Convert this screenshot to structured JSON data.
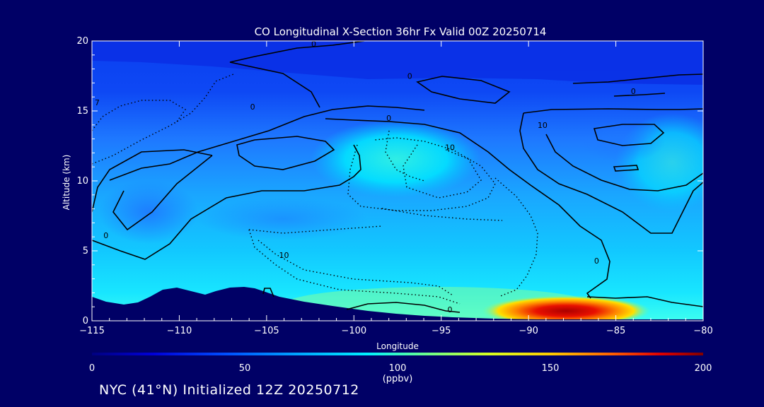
{
  "chart_data": {
    "type": "heatmap",
    "title": "CO Longitudinal X-Section 36hr  Fx Valid 00Z 20250714",
    "xlabel": "Longitude",
    "ylabel": "Altitude (km)",
    "xlim": [
      -115,
      -80
    ],
    "ylim": [
      0,
      20
    ],
    "xticks": [
      -115,
      -110,
      -105,
      -100,
      -95,
      -90,
      -85,
      -80
    ],
    "xtick_labels": [
      "−115",
      "−110",
      "−105",
      "−100",
      "−95",
      "−90",
      "−85",
      "−80"
    ],
    "yticks": [
      0,
      5,
      10,
      15,
      20
    ],
    "ytick_labels": [
      "0",
      "5",
      "10",
      "15",
      "20"
    ],
    "colorbar": {
      "min": 0,
      "max": 200,
      "ticks": [
        0,
        50,
        100,
        150,
        200
      ],
      "tick_labels": [
        "0",
        "50",
        "100",
        "150",
        "200"
      ],
      "unit": "(ppbv)",
      "colors": [
        "#00007f",
        "#0000d8",
        "#0050ff",
        "#00a8ff",
        "#00f0ff",
        "#6dff89",
        "#d8ff20",
        "#ffcc00",
        "#ff6000",
        "#e00000",
        "#7f0000"
      ]
    },
    "contour_labels": [
      {
        "text": "0",
        "lon": -102.3,
        "alt": 19.6
      },
      {
        "text": "0",
        "lon": -96.8,
        "alt": 17.3
      },
      {
        "text": "0",
        "lon": -84.0,
        "alt": 16.2
      },
      {
        "text": "0",
        "lon": -105.8,
        "alt": 15.1
      },
      {
        "text": "0",
        "lon": -98.0,
        "alt": 14.3
      },
      {
        "text": "10",
        "lon": -94.5,
        "alt": 12.2
      },
      {
        "text": "10",
        "lon": -89.2,
        "alt": 13.8
      },
      {
        "text": "0",
        "lon": -114.2,
        "alt": 5.9
      },
      {
        "text": "10",
        "lon": -104.0,
        "alt": 4.5
      },
      {
        "text": "0",
        "lon": -86.1,
        "alt": 4.1
      },
      {
        "text": "0",
        "lon": -94.5,
        "alt": 0.6
      },
      {
        "text": "7",
        "lon": -114.7,
        "alt": 15.4
      }
    ],
    "notable_features": {
      "surface_max_ppbv": 195,
      "surface_max_lon": -86.5,
      "upper_air_background_ppbv": 35
    }
  },
  "footer_text": "NYC (41°N) Initialized 12Z 20250712"
}
